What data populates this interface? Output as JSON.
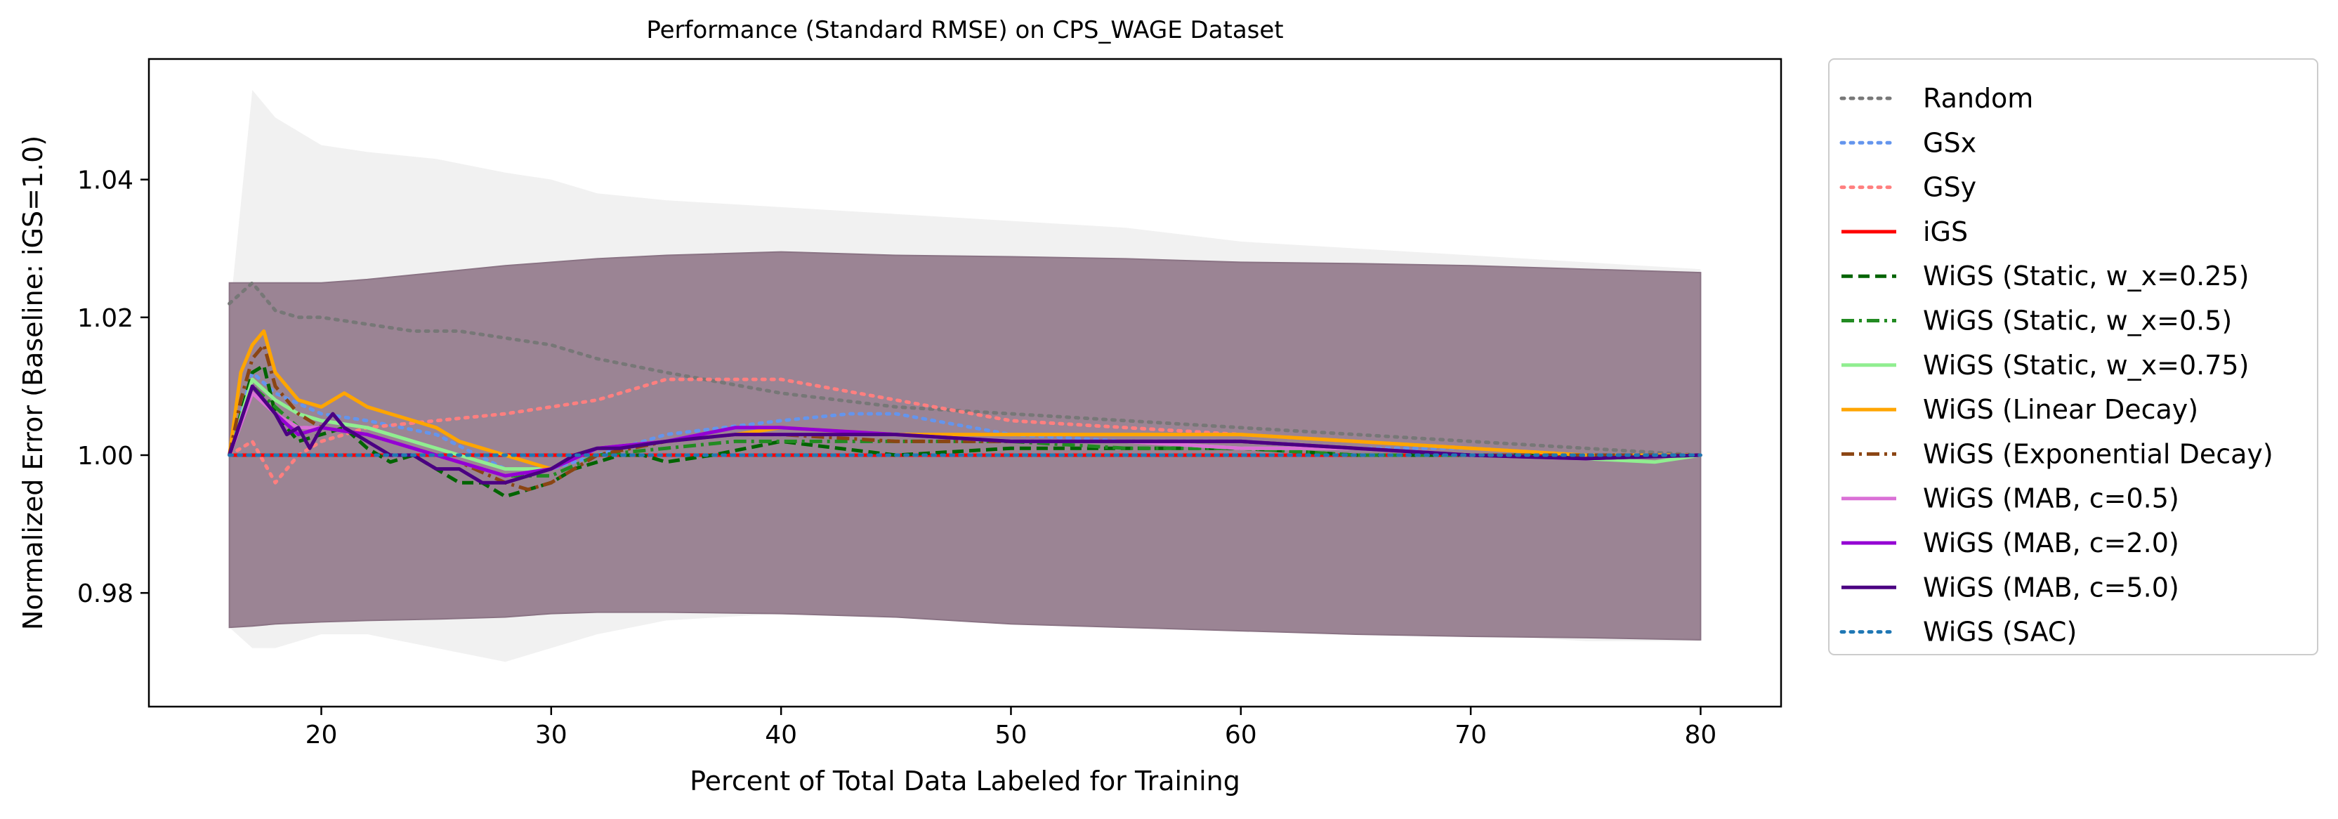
{
  "chart_data": {
    "type": "line",
    "title": "Performance (Standard RMSE) on CPS_WAGE Dataset",
    "xlabel": "Percent of Total Data Labeled for Training",
    "ylabel": "Normalized Error (Baseline: iGS=1.0)",
    "xlim": [
      12.5,
      83.5
    ],
    "ylim": [
      0.9635,
      1.0575
    ],
    "xticks": [
      20,
      30,
      40,
      50,
      60,
      70,
      80
    ],
    "yticks": [
      0.98,
      1.0,
      1.02,
      1.04
    ],
    "xtick_labels": [
      "20",
      "30",
      "40",
      "50",
      "60",
      "70",
      "80"
    ],
    "ytick_labels": [
      "0.98",
      "1.00",
      "1.02",
      "1.04"
    ],
    "grid": false,
    "legend_position": "outside-right",
    "band": {
      "description_color": "#9b8494",
      "x": [
        16,
        17,
        18,
        20,
        22,
        25,
        28,
        30,
        32,
        35,
        40,
        45,
        50,
        55,
        60,
        65,
        70,
        75,
        80
      ],
      "upper": [
        1.025,
        1.025,
        1.025,
        1.025,
        1.0255,
        1.0265,
        1.0275,
        1.028,
        1.0285,
        1.029,
        1.0295,
        1.029,
        1.0288,
        1.0285,
        1.028,
        1.0278,
        1.0275,
        1.027,
        1.0265
      ],
      "lower": [
        0.975,
        0.9752,
        0.9755,
        0.9758,
        0.976,
        0.9762,
        0.9765,
        0.977,
        0.9772,
        0.9772,
        0.977,
        0.9765,
        0.9755,
        0.975,
        0.9745,
        0.974,
        0.9737,
        0.9735,
        0.9732
      ],
      "random_upper": [
        1.02,
        1.053,
        1.049,
        1.045,
        1.044,
        1.043,
        1.041,
        1.04,
        1.038,
        1.037,
        1.036,
        1.035,
        1.034,
        1.033,
        1.031,
        1.03,
        1.029,
        1.028,
        1.027
      ],
      "random_lower": [
        0.975,
        0.972,
        0.972,
        0.974,
        0.974,
        0.972,
        0.97,
        0.972,
        0.974,
        0.976,
        0.977,
        0.977,
        0.976,
        0.975,
        0.975,
        0.974,
        0.974,
        0.973,
        0.973
      ]
    },
    "series": [
      {
        "name": "Random",
        "color": "#777777",
        "dash": "dotted",
        "width": 5,
        "x": [
          16,
          17,
          18,
          19,
          20,
          22,
          24,
          26,
          28,
          30,
          32,
          35,
          40,
          45,
          50,
          55,
          60,
          65,
          70,
          75,
          80
        ],
        "y": [
          1.022,
          1.025,
          1.021,
          1.02,
          1.02,
          1.019,
          1.018,
          1.018,
          1.017,
          1.016,
          1.014,
          1.012,
          1.009,
          1.007,
          1.006,
          1.005,
          1.004,
          1.003,
          1.002,
          1.001,
          1.0
        ]
      },
      {
        "name": "GSx",
        "color": "#6495ed",
        "dash": "dotted",
        "width": 5,
        "x": [
          16,
          17,
          18,
          20,
          22,
          25,
          28,
          30,
          32,
          35,
          40,
          43,
          45,
          50,
          55,
          60,
          65,
          70,
          75,
          80
        ],
        "y": [
          1.0,
          1.012,
          1.009,
          1.006,
          1.005,
          1.003,
          0.998,
          0.998,
          1.0,
          1.003,
          1.005,
          1.006,
          1.006,
          1.003,
          1.002,
          1.002,
          1.001,
          1.001,
          1.0,
          1.0
        ]
      },
      {
        "name": "GSy",
        "color": "#ff7f7f",
        "dash": "dotted",
        "width": 5,
        "x": [
          16,
          17,
          18,
          19,
          20,
          22,
          25,
          28,
          30,
          32,
          35,
          38,
          40,
          45,
          50,
          55,
          60,
          65,
          70,
          75,
          80
        ],
        "y": [
          1.0,
          1.002,
          0.996,
          1.0,
          1.002,
          1.004,
          1.005,
          1.006,
          1.007,
          1.008,
          1.011,
          1.011,
          1.011,
          1.008,
          1.005,
          1.004,
          1.003,
          1.002,
          1.001,
          1.0,
          1.0
        ]
      },
      {
        "name": "iGS",
        "color": "#ff0000",
        "dash": "solid",
        "width": 5,
        "x": [
          16,
          80
        ],
        "y": [
          1.0,
          1.0
        ]
      },
      {
        "name": "WiGS (Static, w_x=0.25)",
        "color": "#006400",
        "dash": "dashed",
        "width": 5,
        "x": [
          16,
          17,
          17.5,
          18,
          19,
          20,
          21,
          22,
          23,
          24,
          25,
          26,
          27,
          28,
          29,
          30,
          31,
          32,
          33,
          34,
          35,
          37,
          40,
          45,
          50,
          55,
          60,
          65,
          70,
          75,
          80
        ],
        "y": [
          1.0,
          1.012,
          1.013,
          1.006,
          1.002,
          1.003,
          1.004,
          1.001,
          0.999,
          1.0,
          0.998,
          0.996,
          0.996,
          0.994,
          0.995,
          0.996,
          0.998,
          0.999,
          1.0,
          1.0,
          0.999,
          1.0,
          1.002,
          1.0,
          1.001,
          1.001,
          1.001,
          1.0,
          1.0,
          1.0,
          1.0
        ]
      },
      {
        "name": "WiGS (Static, w_x=0.5)",
        "color": "#228b22",
        "dash": "dashdot",
        "width": 5,
        "x": [
          16,
          17,
          18,
          19,
          20,
          22,
          24,
          26,
          28,
          30,
          32,
          35,
          38,
          40,
          45,
          50,
          55,
          60,
          65,
          70,
          75,
          80
        ],
        "y": [
          1.0,
          1.01,
          1.007,
          1.004,
          1.004,
          1.003,
          1.001,
          0.999,
          0.997,
          0.997,
          1.0,
          1.001,
          1.002,
          1.002,
          1.002,
          1.002,
          1.001,
          1.001,
          1.0,
          1.0,
          1.0,
          1.0
        ]
      },
      {
        "name": "WiGS (Static, w_x=0.75)",
        "color": "#90ee90",
        "dash": "solid",
        "width": 5,
        "x": [
          16,
          17,
          18,
          19,
          20,
          22,
          24,
          26,
          28,
          30,
          32,
          35,
          38,
          40,
          45,
          50,
          55,
          60,
          65,
          70,
          75,
          78,
          80
        ],
        "y": [
          1.0,
          1.011,
          1.008,
          1.006,
          1.005,
          1.004,
          1.002,
          1.0,
          0.998,
          0.998,
          1.001,
          1.002,
          1.003,
          1.003,
          1.003,
          1.002,
          1.002,
          1.001,
          1.001,
          1.0,
          0.9995,
          0.999,
          1.0
        ]
      },
      {
        "name": "WiGS (Linear Decay)",
        "color": "#ffa500",
        "dash": "solid",
        "width": 5,
        "x": [
          16,
          16.5,
          17,
          17.5,
          18,
          19,
          20,
          21,
          22,
          23,
          24,
          25,
          26,
          27,
          28,
          29,
          30,
          32,
          35,
          38,
          40,
          45,
          50,
          55,
          60,
          65,
          70,
          75,
          80
        ],
        "y": [
          1.0,
          1.012,
          1.016,
          1.018,
          1.012,
          1.008,
          1.007,
          1.009,
          1.007,
          1.006,
          1.005,
          1.004,
          1.002,
          1.001,
          1.0,
          0.999,
          0.998,
          1.001,
          1.002,
          1.003,
          1.004,
          1.003,
          1.003,
          1.003,
          1.003,
          1.002,
          1.001,
          1.0,
          1.0
        ]
      },
      {
        "name": "WiGS (Exponential Decay)",
        "color": "#8b4513",
        "dash": "dashdot",
        "width": 5,
        "x": [
          16,
          16.5,
          17,
          17.5,
          18,
          19,
          20,
          22,
          24,
          26,
          28,
          29,
          30,
          32,
          35,
          38,
          40,
          45,
          50,
          55,
          60,
          65,
          70,
          75,
          80
        ],
        "y": [
          1.0,
          1.008,
          1.014,
          1.016,
          1.01,
          1.006,
          1.004,
          1.003,
          1.001,
          0.999,
          0.996,
          0.995,
          0.996,
          1.0,
          1.002,
          1.003,
          1.003,
          1.002,
          1.002,
          1.002,
          1.002,
          1.001,
          1.0,
          1.0,
          1.0
        ]
      },
      {
        "name": "WiGS (MAB, c=0.5)",
        "color": "#da70d6",
        "dash": "solid",
        "width": 5,
        "x": [
          16,
          17,
          18,
          19,
          20,
          22,
          24,
          26,
          28,
          30,
          32,
          35,
          38,
          40,
          45,
          50,
          55,
          60,
          65,
          70,
          75,
          80
        ],
        "y": [
          1.0,
          1.009,
          1.006,
          1.004,
          1.004,
          1.003,
          1.001,
          0.999,
          0.997,
          0.998,
          1.001,
          1.002,
          1.003,
          1.003,
          1.003,
          1.002,
          1.002,
          1.001,
          1.001,
          1.0,
          0.9995,
          1.0
        ]
      },
      {
        "name": "WiGS (MAB, c=2.0)",
        "color": "#9400d3",
        "dash": "solid",
        "width": 5,
        "x": [
          16,
          17,
          18,
          19,
          20,
          22,
          24,
          26,
          28,
          30,
          32,
          35,
          38,
          40,
          45,
          50,
          55,
          60,
          65,
          70,
          75,
          80
        ],
        "y": [
          1.0,
          1.01,
          1.006,
          1.003,
          1.004,
          1.003,
          1.001,
          0.999,
          0.997,
          0.998,
          1.001,
          1.002,
          1.004,
          1.004,
          1.003,
          1.002,
          1.002,
          1.002,
          1.001,
          1.0,
          0.9995,
          1.0
        ]
      },
      {
        "name": "WiGS (MAB, c=5.0)",
        "color": "#4b0082",
        "dash": "solid",
        "width": 5,
        "x": [
          16,
          16.5,
          17,
          17.5,
          18,
          18.5,
          19,
          19.5,
          20,
          20.5,
          21,
          22,
          23,
          24,
          25,
          26,
          27,
          28,
          29,
          30,
          31,
          32,
          33,
          35,
          38,
          40,
          43,
          45,
          50,
          55,
          60,
          65,
          70,
          75,
          80
        ],
        "y": [
          1.0,
          1.005,
          1.01,
          1.008,
          1.006,
          1.003,
          1.004,
          1.001,
          1.004,
          1.006,
          1.004,
          1.002,
          1.0,
          1.0,
          0.998,
          0.998,
          0.996,
          0.996,
          0.997,
          0.998,
          1.0,
          1.001,
          1.001,
          1.002,
          1.003,
          1.003,
          1.003,
          1.003,
          1.002,
          1.002,
          1.002,
          1.001,
          1.0,
          0.9995,
          1.0
        ]
      },
      {
        "name": "WiGS (SAC)",
        "color": "#1f77b4",
        "dash": "dotted",
        "width": 5,
        "x": [
          16,
          80
        ],
        "y": [
          1.0,
          1.0
        ]
      }
    ]
  }
}
